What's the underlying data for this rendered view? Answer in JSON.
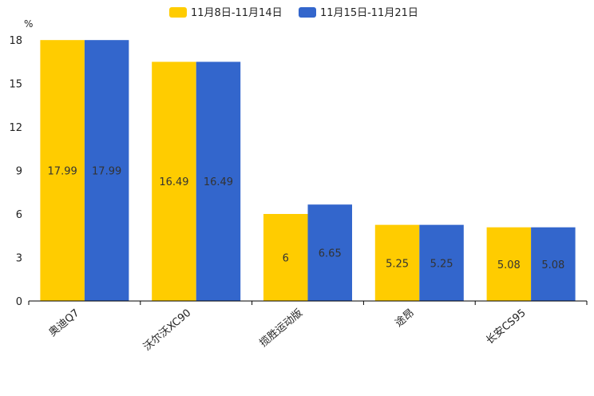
{
  "chart_data": {
    "type": "bar",
    "unit": "%",
    "categories": [
      "奥迪Q7",
      "沃尔沃XC90",
      "揽胜运动版",
      "途昂",
      "长安CS95"
    ],
    "series": [
      {
        "name": "11月8日-11月14日",
        "color": "#FFCC00",
        "values": [
          17.99,
          16.49,
          6,
          5.25,
          5.08
        ],
        "labels": [
          "17.99",
          "16.49",
          "6",
          "5.25",
          "5.08"
        ]
      },
      {
        "name": "11月15日-11月21日",
        "color": "#3366CC",
        "values": [
          17.99,
          16.49,
          6.65,
          5.25,
          5.08
        ],
        "labels": [
          "17.99",
          "16.49",
          "6.65",
          "5.25",
          "5.08"
        ]
      }
    ],
    "yticks": [
      "0",
      "3",
      "6",
      "9",
      "12",
      "15",
      "18"
    ],
    "ylim": [
      0,
      18
    ],
    "legend_position": "top-center",
    "grid": false
  }
}
